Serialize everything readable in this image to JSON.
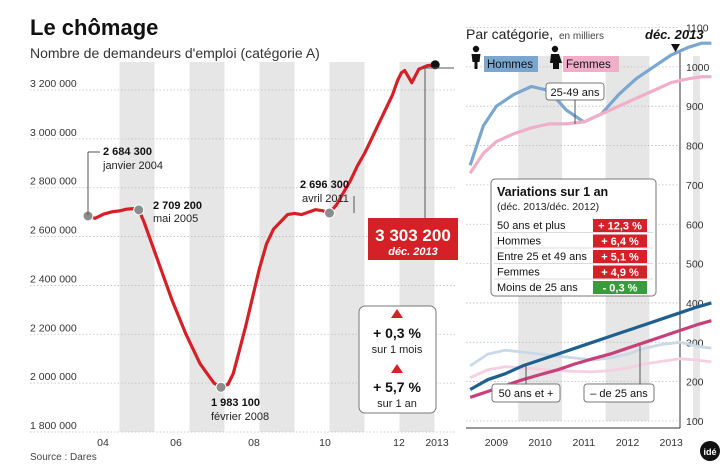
{
  "title": "Le chômage",
  "subtitle": "Nombre de demandeurs d'emploi (catégorie A)",
  "source": "Source : Dares",
  "logo": "idé",
  "colors": {
    "red": "#d42027",
    "band": "#e6e6e6",
    "men": "#7aa6cf",
    "women": "#f0aec9",
    "young_bg": "#c9d9e8",
    "young_fem": "#f6cfe0",
    "old_men": "#1f5f8f",
    "old_fem": "#c8407a",
    "neg": "#3b9a3e"
  },
  "chart_data": [
    {
      "type": "line",
      "title": "Le chômage",
      "subtitle": "Nombre de demandeurs d'emploi (catégorie A)",
      "x_labels": [
        "04",
        "06",
        "08",
        "10",
        "12",
        "2013"
      ],
      "y_ticks": [
        "1 800 000",
        "2 000 000",
        "2 200 000",
        "2 400 000",
        "2 600 000",
        "2 800 000",
        "3 000 000",
        "3 200 000"
      ],
      "ylim": [
        1800000,
        3300000
      ],
      "series": [
        {
          "x": [
            2004.0,
            2004.2,
            2004.45,
            2004.7,
            2004.9,
            2005.1,
            2005.35,
            2005.45,
            2005.6,
            2005.8,
            2006.0,
            2006.2,
            2006.4,
            2006.6,
            2006.8,
            2007.0,
            2007.2,
            2007.4,
            2007.6,
            2007.8,
            2008.0,
            2008.15,
            2008.3,
            2008.5,
            2008.7,
            2008.9,
            2009.1,
            2009.3,
            2009.5,
            2009.7,
            2009.9,
            2010.1,
            2010.3,
            2010.5,
            2010.7,
            2010.9,
            2011.1,
            2011.3,
            2011.5,
            2011.7,
            2011.9,
            2012.1,
            2012.3,
            2012.5,
            2012.7,
            2012.85,
            2012.95,
            2013.05,
            2013.25,
            2013.45,
            2013.7,
            2013.92
          ],
          "y": [
            2684300,
            2675000,
            2692000,
            2702000,
            2705000,
            2712000,
            2715000,
            2709200,
            2660000,
            2580000,
            2500000,
            2420000,
            2340000,
            2270000,
            2200000,
            2140000,
            2080000,
            2040000,
            2000000,
            1983100,
            1995000,
            2040000,
            2120000,
            2230000,
            2350000,
            2470000,
            2570000,
            2630000,
            2660000,
            2690000,
            2695000,
            2690000,
            2700000,
            2710000,
            2706000,
            2696300,
            2730000,
            2780000,
            2830000,
            2890000,
            2940000,
            3000000,
            3060000,
            3120000,
            3180000,
            3240000,
            3270000,
            3280000,
            3230000,
            3285000,
            3300000,
            3303200
          ]
        }
      ],
      "annotations": [
        {
          "value": "2 684 300",
          "label": "janvier 2004"
        },
        {
          "value": "2 709 200",
          "label": "mai 2005"
        },
        {
          "value": "1 983 100",
          "label": "février 2008"
        },
        {
          "value": "2 696 300",
          "label": "avril 2011"
        }
      ],
      "highlight": {
        "value": "3 303 200",
        "label": "déc. 2013"
      },
      "changes": [
        {
          "value": "+ 0,3 %",
          "label": "sur 1 mois"
        },
        {
          "value": "+ 5,7 %",
          "label": "sur 1 an"
        }
      ]
    },
    {
      "type": "line",
      "title": "Par catégorie,",
      "unit": "en milliers",
      "period_label": "déc. 2013",
      "x_labels": [
        "2009",
        "2010",
        "2011",
        "2012",
        "2013"
      ],
      "y_ticks": [
        "100",
        "200",
        "300",
        "400",
        "500",
        "600",
        "700",
        "800",
        "900",
        "1000",
        "1100"
      ],
      "ylim": [
        100,
        1100
      ],
      "legend": [
        "Hommes",
        "Femmes"
      ],
      "series": [
        {
          "name": "Hommes",
          "group": "25-49 ans",
          "x": [
            2008.4,
            2008.7,
            2009.0,
            2009.4,
            2009.8,
            2010.2,
            2010.6,
            2011.0,
            2011.4,
            2011.8,
            2012.2,
            2012.6,
            2013.0,
            2013.4,
            2013.7,
            2013.92
          ],
          "y": [
            750,
            850,
            900,
            930,
            950,
            940,
            890,
            860,
            880,
            930,
            970,
            1000,
            1030,
            1050,
            1060,
            1060
          ]
        },
        {
          "name": "Femmes",
          "group": "25-49 ans",
          "x": [
            2008.4,
            2008.7,
            2009.0,
            2009.4,
            2009.8,
            2010.2,
            2010.6,
            2011.0,
            2011.4,
            2011.8,
            2012.2,
            2012.6,
            2013.0,
            2013.4,
            2013.7,
            2013.92
          ],
          "y": [
            730,
            780,
            810,
            830,
            845,
            855,
            855,
            860,
            880,
            900,
            920,
            940,
            960,
            970,
            975,
            975
          ]
        },
        {
          "name": "Hommes",
          "group": "50 ans et +",
          "x": [
            2008.4,
            2008.8,
            2009.2,
            2009.6,
            2010.0,
            2010.4,
            2010.8,
            2011.2,
            2011.6,
            2012.0,
            2012.4,
            2012.8,
            2013.2,
            2013.6,
            2013.92
          ],
          "y": [
            180,
            205,
            220,
            240,
            255,
            270,
            285,
            300,
            315,
            330,
            345,
            360,
            375,
            390,
            400
          ]
        },
        {
          "name": "Femmes",
          "group": "50 ans et +",
          "x": [
            2008.4,
            2008.8,
            2009.2,
            2009.6,
            2010.0,
            2010.4,
            2010.8,
            2011.2,
            2011.6,
            2012.0,
            2012.4,
            2012.8,
            2013.2,
            2013.6,
            2013.92
          ],
          "y": [
            160,
            175,
            190,
            205,
            218,
            230,
            245,
            258,
            270,
            285,
            300,
            315,
            330,
            345,
            355
          ]
        },
        {
          "name": "Hommes",
          "group": "– de 25 ans",
          "x": [
            2008.4,
            2008.8,
            2009.2,
            2009.6,
            2010.0,
            2010.4,
            2010.8,
            2011.2,
            2011.6,
            2012.0,
            2012.4,
            2012.8,
            2013.2,
            2013.6,
            2013.92
          ],
          "y": [
            240,
            270,
            280,
            275,
            270,
            265,
            260,
            255,
            260,
            270,
            285,
            295,
            300,
            290,
            285
          ]
        },
        {
          "name": "Femmes",
          "group": "– de 25 ans",
          "x": [
            2008.4,
            2008.8,
            2009.2,
            2009.6,
            2010.0,
            2010.4,
            2010.8,
            2011.2,
            2011.6,
            2012.0,
            2012.4,
            2012.8,
            2013.2,
            2013.6,
            2013.92
          ],
          "y": [
            210,
            230,
            238,
            235,
            232,
            228,
            226,
            225,
            228,
            235,
            245,
            252,
            258,
            255,
            250
          ]
        }
      ],
      "group_labels": [
        "25-49 ans",
        "50 ans et +",
        "– de 25 ans"
      ]
    },
    {
      "type": "table",
      "title": "Variations sur 1 an",
      "subtitle": "(déc. 2013/déc. 2012)",
      "rows": [
        {
          "label": "50 ans et plus",
          "value": "+ 12,3 %",
          "sign": "pos"
        },
        {
          "label": "Hommes",
          "value": "+ 6,4 %",
          "sign": "pos"
        },
        {
          "label": "Entre 25 et 49 ans",
          "value": "+ 5,1 %",
          "sign": "pos"
        },
        {
          "label": "Femmes",
          "value": "+ 4,9 %",
          "sign": "pos"
        },
        {
          "label": "Moins de 25 ans",
          "value": "- 0,3 %",
          "sign": "neg"
        }
      ]
    }
  ]
}
